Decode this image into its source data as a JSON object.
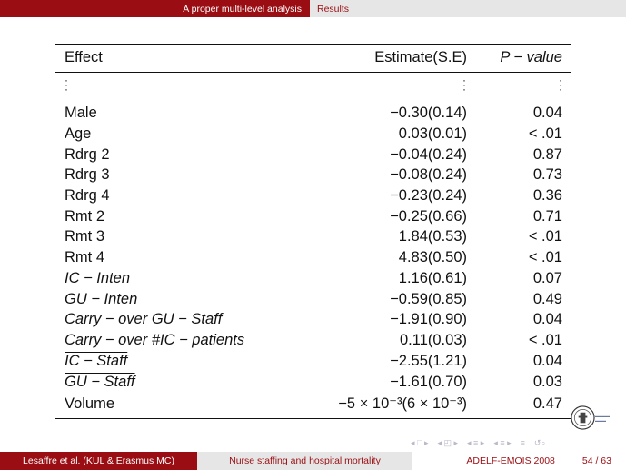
{
  "nav": {
    "active_section": "A proper multi-level analysis",
    "current_section": "Results"
  },
  "table": {
    "headers": {
      "effect": "Effect",
      "estimate": "Estimate(S.E)",
      "pvalue": "P − value"
    },
    "rows": [
      {
        "effect": "Male",
        "estimate": "−0.30(0.14)",
        "p": "0.04"
      },
      {
        "effect": "Age",
        "estimate": "0.03(0.01)",
        "p": "< .01"
      },
      {
        "effect": "Rdrg 2",
        "estimate": "−0.04(0.24)",
        "p": "0.87"
      },
      {
        "effect": "Rdrg 3",
        "estimate": "−0.08(0.24)",
        "p": "0.73"
      },
      {
        "effect": "Rdrg 4",
        "estimate": "−0.23(0.24)",
        "p": "0.36"
      },
      {
        "effect": "Rmt 2",
        "estimate": "−0.25(0.66)",
        "p": "0.71"
      },
      {
        "effect": "Rmt 3",
        "estimate": "1.84(0.53)",
        "p": "< .01"
      },
      {
        "effect": "Rmt 4",
        "estimate": "4.83(0.50)",
        "p": "< .01"
      },
      {
        "effect": "IC − Inten",
        "estimate": "1.16(0.61)",
        "p": "0.07"
      },
      {
        "effect": "GU − Inten",
        "estimate": "−0.59(0.85)",
        "p": "0.49"
      },
      {
        "effect": "Carry − over GU − Staff",
        "estimate": "−1.91(0.90)",
        "p": "0.04"
      },
      {
        "effect": "Carry − over #IC − patients",
        "estimate": "0.11(0.03)",
        "p": "< .01"
      },
      {
        "effect": "IC − Staff",
        "estimate": "−2.55(1.21)",
        "p": "0.04"
      },
      {
        "effect": "GU − Staff",
        "estimate": "−1.61(0.70)",
        "p": "0.03"
      },
      {
        "effect": "Volume",
        "estimate": "−5 × 10⁻³(6 × 10⁻³)",
        "p": "0.47"
      }
    ]
  },
  "footer": {
    "authors": "Lesaffre et al. (KUL & Erasmus MC)",
    "title": "Nurse staffing and hospital mortality",
    "event": "ADELF-EMOIS 2008",
    "page": "54 / 63"
  },
  "colors": {
    "brand": "#9a0d12",
    "bar_gray": "#e6e6e6"
  }
}
